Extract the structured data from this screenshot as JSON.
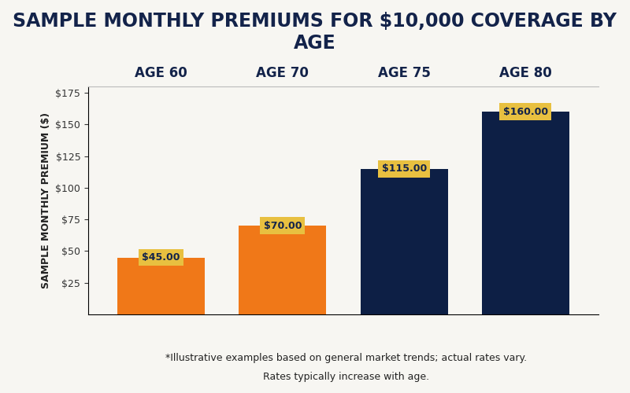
{
  "chart_data": {
    "type": "bar",
    "title": "SAMPLE MONTHLY PREMIUMS FOR $10,000 COVERAGE BY AGE",
    "y_label": "SAMPLE MONTHLY PREMIUM ($)",
    "categories": [
      "AGE 60",
      "AGE 70",
      "AGE 75",
      "AGE 80"
    ],
    "values": [
      45,
      70,
      115,
      160
    ],
    "value_labels": [
      "$45.00",
      "$70.00",
      "$115.00",
      "$160.00"
    ],
    "colors": [
      "#f07818",
      "#f07818",
      "#0d1f45",
      "#0d1f45"
    ],
    "data_labels": true,
    "ylim": [
      0,
      180
    ],
    "yticks": [
      {
        "value": 25,
        "label": "$25"
      },
      {
        "value": 50,
        "label": "$50"
      },
      {
        "value": 75,
        "label": "$75"
      },
      {
        "value": 100,
        "label": "$100"
      },
      {
        "value": 125,
        "label": "$125"
      },
      {
        "value": 150,
        "label": "$150"
      },
      {
        "value": 175,
        "label": "$175"
      }
    ],
    "grid": false,
    "annotations": [
      "*Illustrative examples based on general market trends; actual rates vary.",
      "Rates typically increase with age."
    ]
  }
}
